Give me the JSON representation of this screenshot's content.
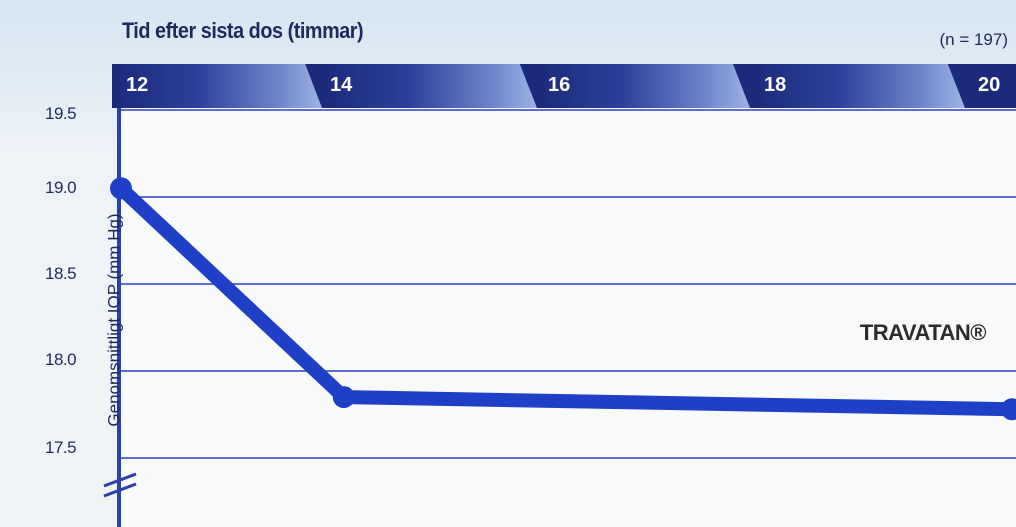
{
  "chart_data": {
    "type": "line",
    "title": "Tid efter sista dos (timmar)",
    "annotation": "(n = 197)",
    "ylabel": "Genomsnittligt IOP (mm Hg)",
    "x": [
      12,
      14,
      16,
      18,
      20
    ],
    "x_tick_labels": [
      "12",
      "14",
      "16",
      "18",
      "20"
    ],
    "ylim": [
      17.0,
      19.5
    ],
    "y_ticks": [
      "19.5",
      "19.0",
      "18.5",
      "18.0",
      "17.5"
    ],
    "y_tick_values": [
      19.5,
      19.0,
      18.5,
      18.0,
      17.5
    ],
    "axis_break": true,
    "grid": true,
    "series": [
      {
        "name": "TRAVATAN®",
        "x": [
          12,
          14,
          20
        ],
        "values": [
          19.05,
          17.85,
          17.78
        ],
        "color": "#1f3fc6"
      }
    ]
  }
}
